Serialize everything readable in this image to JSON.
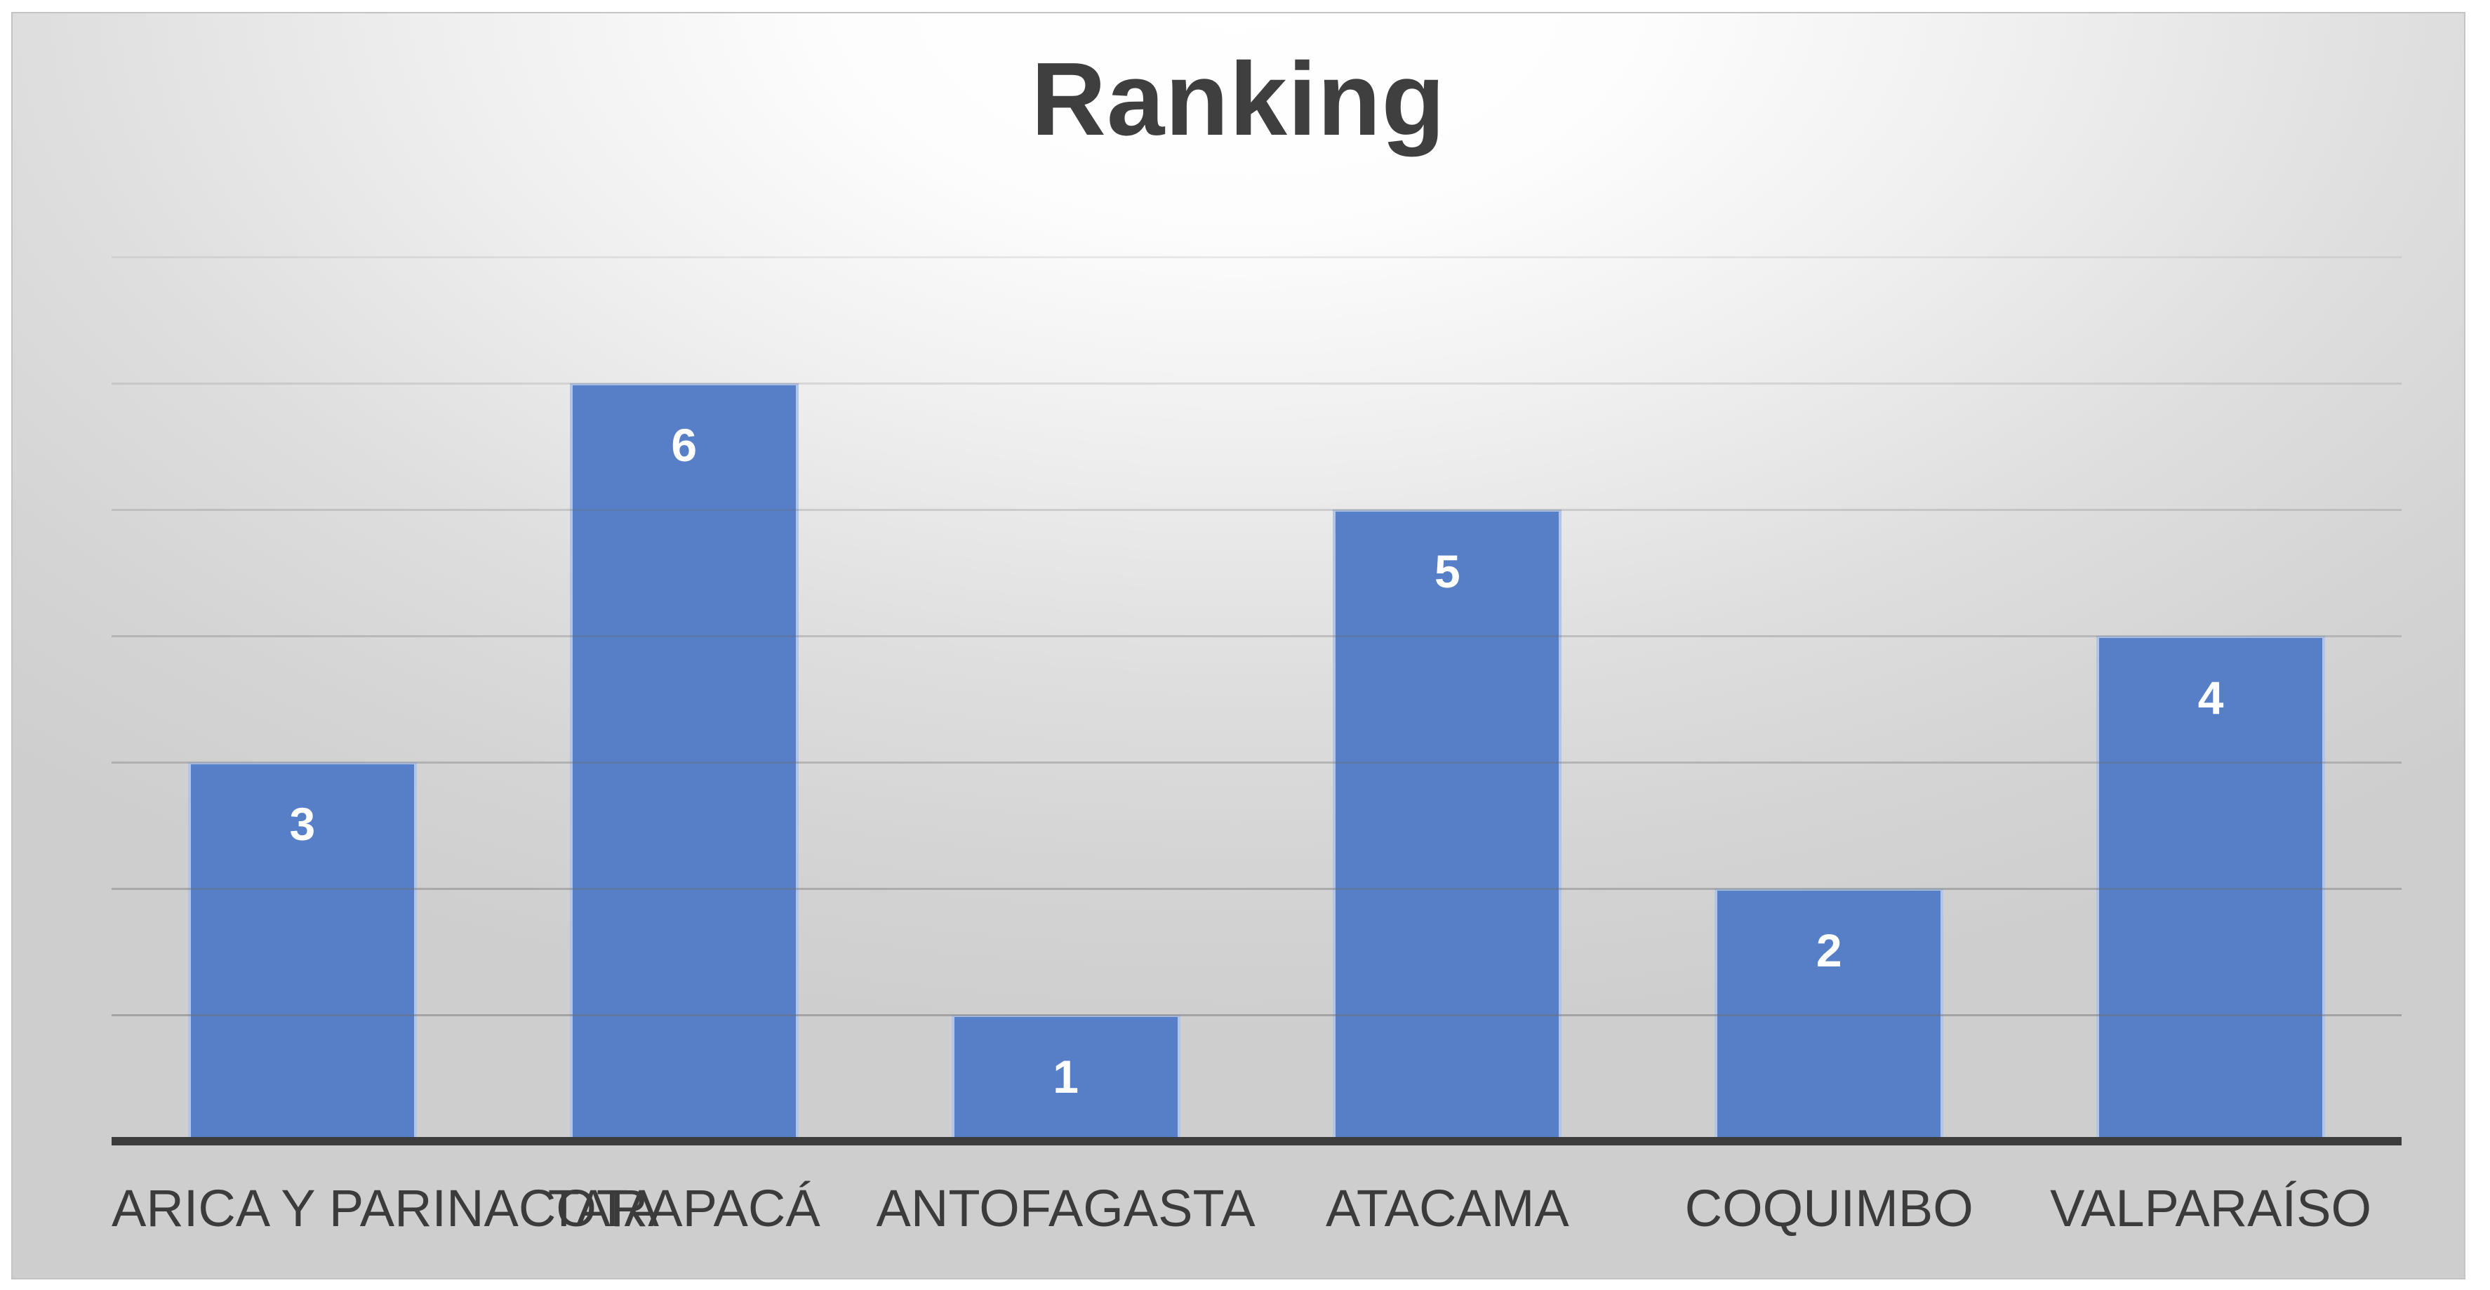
{
  "title": "Ranking",
  "chart_data": {
    "type": "bar",
    "title": "Ranking",
    "categories": [
      "ARICA Y PARINACOTA",
      "TARAPACÁ",
      "ANTOFAGASTA",
      "ATACAMA",
      "COQUIMBO",
      "VALPARAÍSO"
    ],
    "values": [
      3,
      6,
      1,
      5,
      2,
      4
    ],
    "xlabel": "",
    "ylabel": "",
    "ylim": [
      0,
      7
    ],
    "gridline_values": [
      1,
      2,
      3,
      4,
      5,
      6,
      7
    ],
    "grid": true,
    "legend": false,
    "data_labels_shown": true,
    "colors": {
      "bar_fill": "#567fc7",
      "bar_edge": "rgba(255,255,255,0.55)",
      "data_label": "#ffffff",
      "axis_line": "#3c3c3c",
      "category_label": "#3b3b3b",
      "title": "#3f3f3f",
      "gridline_rgb": "110,110,110",
      "card_border": "#c4c4c4"
    }
  }
}
